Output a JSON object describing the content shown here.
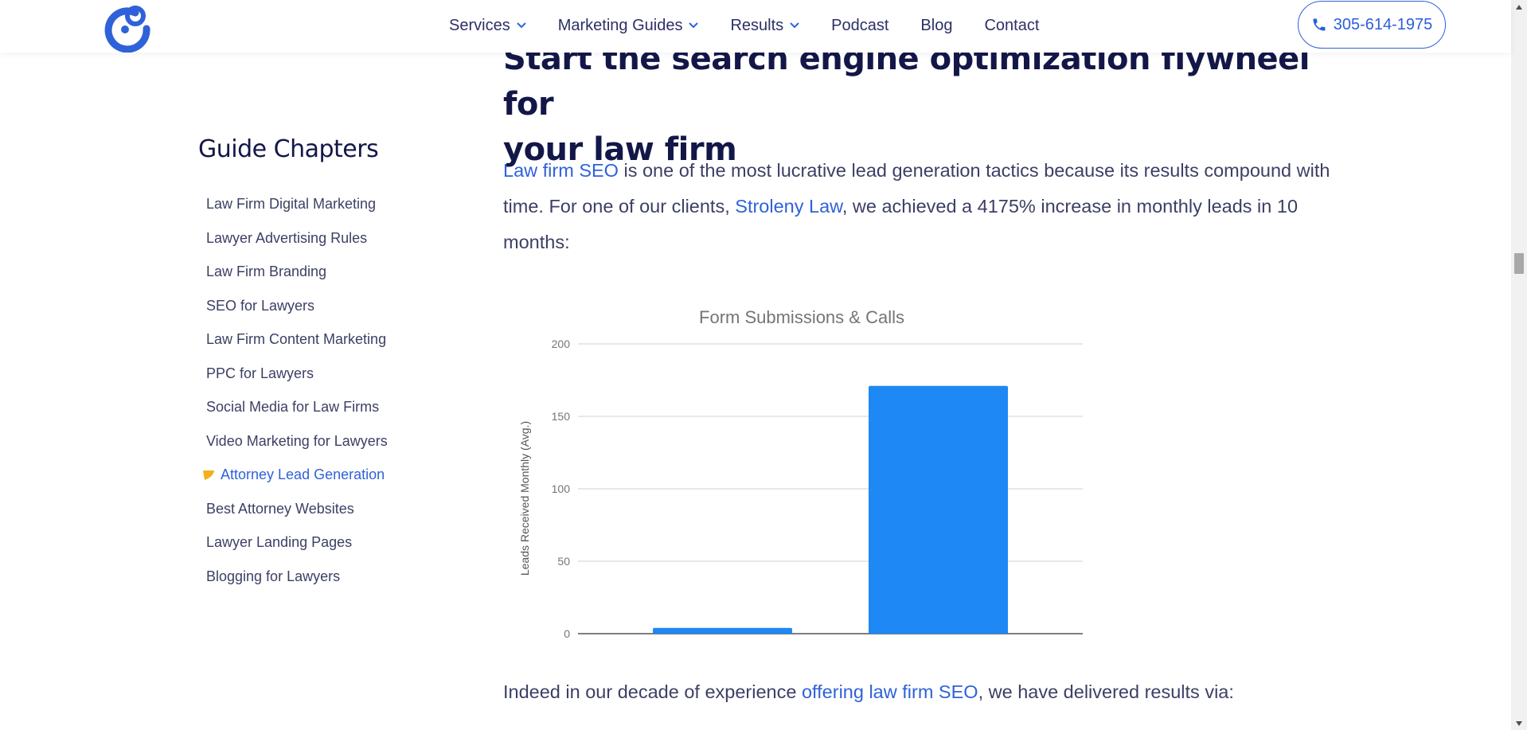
{
  "header": {
    "nav": [
      {
        "label": "Services",
        "has_dropdown": true
      },
      {
        "label": "Marketing Guides",
        "has_dropdown": true
      },
      {
        "label": "Results",
        "has_dropdown": true
      },
      {
        "label": "Podcast",
        "has_dropdown": false
      },
      {
        "label": "Blog",
        "has_dropdown": false
      },
      {
        "label": "Contact",
        "has_dropdown": false
      }
    ],
    "phone": "305-614-1975",
    "accent_color": "#2f62d8"
  },
  "sidebar": {
    "title": "Guide Chapters",
    "items": [
      {
        "label": "Law Firm Digital Marketing",
        "active": false
      },
      {
        "label": "Lawyer Advertising Rules",
        "active": false
      },
      {
        "label": "Law Firm Branding",
        "active": false
      },
      {
        "label": "SEO for Lawyers",
        "active": false
      },
      {
        "label": "Law Firm Content Marketing",
        "active": false
      },
      {
        "label": "PPC for Lawyers",
        "active": false
      },
      {
        "label": "Social Media for Law Firms",
        "active": false
      },
      {
        "label": "Video Marketing for Lawyers",
        "active": false
      },
      {
        "label": "Attorney Lead Generation",
        "active": true
      },
      {
        "label": "Best Attorney Websites",
        "active": false
      },
      {
        "label": "Lawyer Landing Pages",
        "active": false
      },
      {
        "label": "Blogging for Lawyers",
        "active": false
      }
    ]
  },
  "main": {
    "heading_line1": "Start the search engine optimization flywheel for",
    "heading_line2": "your law firm",
    "p1": {
      "link1": "Law firm SEO",
      "text1": " is one of the most lucrative lead generation tactics because its results compound with time. For one of our clients, ",
      "link2": "Stroleny Law",
      "text2": ", we achieved a 4175% increase in monthly leads in 10 months:"
    },
    "p2": {
      "text1": "Indeed in our decade of experience ",
      "link1": "offering law firm SEO",
      "text2": ", we have delivered results via:"
    }
  },
  "chart_data": {
    "type": "bar",
    "title": "Form Submissions & Calls",
    "xlabel": "",
    "ylabel": "Leads Received Monthly (Avg.)",
    "categories": [
      "",
      ""
    ],
    "values": [
      4,
      171
    ],
    "ylim": [
      0,
      200
    ],
    "yticks": [
      "0",
      "50",
      "100",
      "150",
      "200"
    ],
    "grid": true,
    "bar_color": "#1e88f5"
  }
}
